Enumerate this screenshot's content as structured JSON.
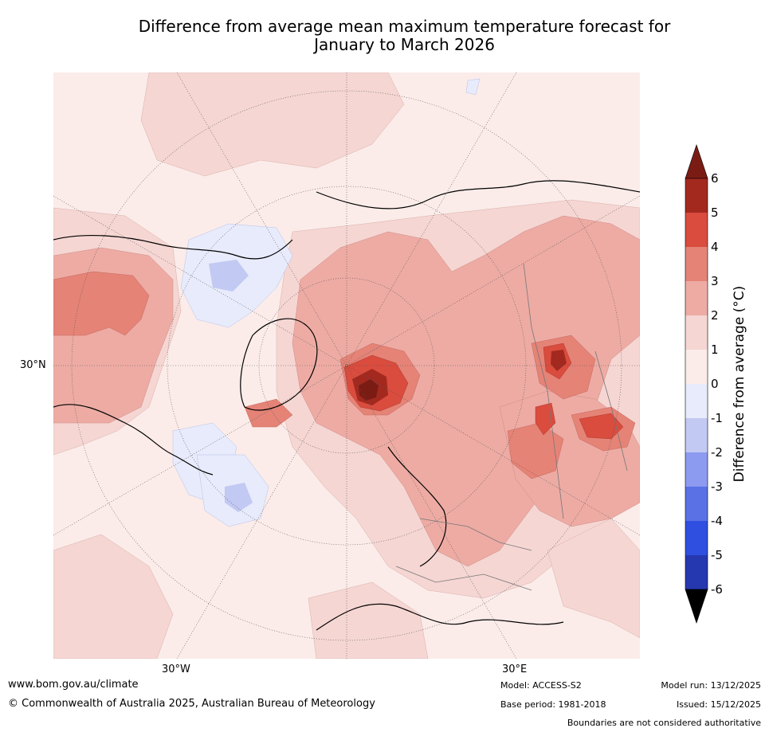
{
  "title": {
    "line1": "Difference from average mean maximum temperature forecast for",
    "line2": "January to March 2026"
  },
  "map": {
    "projection": "north polar stereographic",
    "graticule_labels": {
      "left": "30°N",
      "bottom_left": "30°W",
      "bottom_right": "30°E"
    }
  },
  "legend": {
    "label": "Difference from average (°C)",
    "ticks": [
      "6",
      "5",
      "4",
      "3",
      "2",
      "1",
      "0",
      "-1",
      "-2",
      "-3",
      "-4",
      "-5",
      "-6"
    ],
    "colors": {
      "above_6": "#7b1c14",
      "5_to_6": "#a3291f",
      "4_to_5": "#d94c3e",
      "3_to_4": "#e58377",
      "2_to_3": "#edaba4",
      "1_to_2": "#f5d6d3",
      "0_to_1": "#fbece9",
      "-1_to_0": "#e7ebfb",
      "-2_to_-1": "#c2c9f2",
      "-3_to_-2": "#8c9af0",
      "-4_to_-3": "#5a71e6",
      "-5_to_-4": "#2f4fe0",
      "-6_to_-5": "#2638b0",
      "below_-6": "#1e2a80"
    }
  },
  "footer": {
    "website": "www.bom.gov.au/climate",
    "copyright": "© Commonwealth of Australia 2025, Australian Bureau of Meteorology",
    "model": "Model: ACCESS-S2",
    "base_period": "Base period: 1981-2018",
    "model_run": "Model run: 13/12/2025",
    "issued": "Issued: 15/12/2025",
    "disclaimer": "Boundaries are not considered authoritative"
  }
}
